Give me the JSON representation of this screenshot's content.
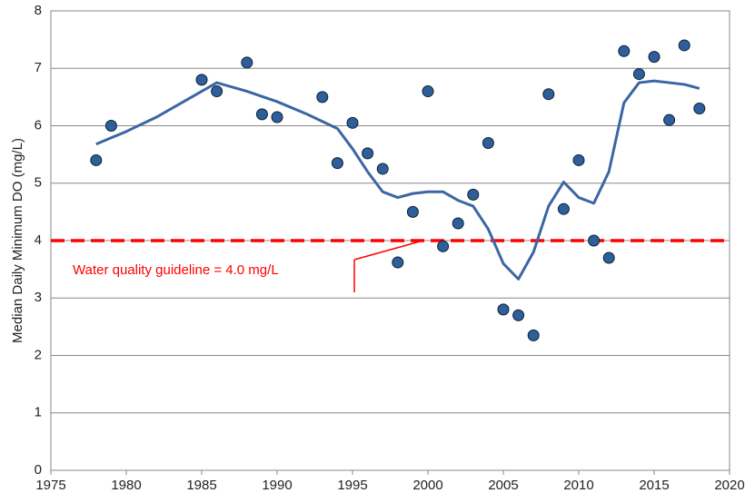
{
  "chart_data": {
    "type": "scatter",
    "y_label": "Median Daily Minimum DO (mg/L)",
    "xlim": [
      1975,
      2020
    ],
    "xticks": [
      1975,
      1980,
      1985,
      1990,
      1995,
      2000,
      2005,
      2010,
      2015,
      2020
    ],
    "ylim": [
      0,
      8
    ],
    "yticks": [
      0,
      1,
      2,
      3,
      4,
      5,
      6,
      7,
      8
    ],
    "grid": true,
    "points": {
      "color": "#2f5f9a",
      "x": [
        1978,
        1979,
        1985,
        1986,
        1988,
        1989,
        1990,
        1993,
        1994,
        1995,
        1996,
        1997,
        1998,
        1999,
        2000,
        2001,
        2002,
        2003,
        2004,
        2005,
        2006,
        2007,
        2008,
        2009,
        2010,
        2011,
        2012,
        2013,
        2014,
        2015,
        2016,
        2017,
        2018
      ],
      "values": [
        5.4,
        6.0,
        6.8,
        6.6,
        7.1,
        6.2,
        6.15,
        6.5,
        5.35,
        6.05,
        5.52,
        5.25,
        3.62,
        4.5,
        6.6,
        3.9,
        4.3,
        4.8,
        5.7,
        2.8,
        2.7,
        2.35,
        6.55,
        4.55,
        5.4,
        4.0,
        3.7,
        7.3,
        6.9,
        7.2,
        6.1,
        7.4,
        6.3
      ]
    },
    "trend": {
      "color": "#3c66a3",
      "x": [
        1978,
        1980,
        1982,
        1984,
        1986,
        1988,
        1990,
        1992,
        1994,
        1995,
        1996,
        1997,
        1998,
        1999,
        2000,
        2001,
        2002,
        2003,
        2004,
        2005,
        2006,
        2007,
        2008,
        2009,
        2010,
        2011,
        2012,
        2013,
        2014,
        2015,
        2016,
        2017,
        2018
      ],
      "values": [
        5.68,
        5.9,
        6.15,
        6.45,
        6.75,
        6.6,
        6.42,
        6.2,
        5.95,
        5.6,
        5.2,
        4.85,
        4.75,
        4.82,
        4.85,
        4.85,
        4.7,
        4.6,
        4.2,
        3.6,
        3.33,
        3.8,
        4.6,
        5.02,
        4.75,
        4.65,
        5.2,
        6.4,
        6.75,
        6.78,
        6.75,
        6.72,
        6.65
      ]
    },
    "guideline": {
      "value": 4.0,
      "label": "Water quality guideline = 4.0 mg/L",
      "color": "#ff0000"
    }
  }
}
